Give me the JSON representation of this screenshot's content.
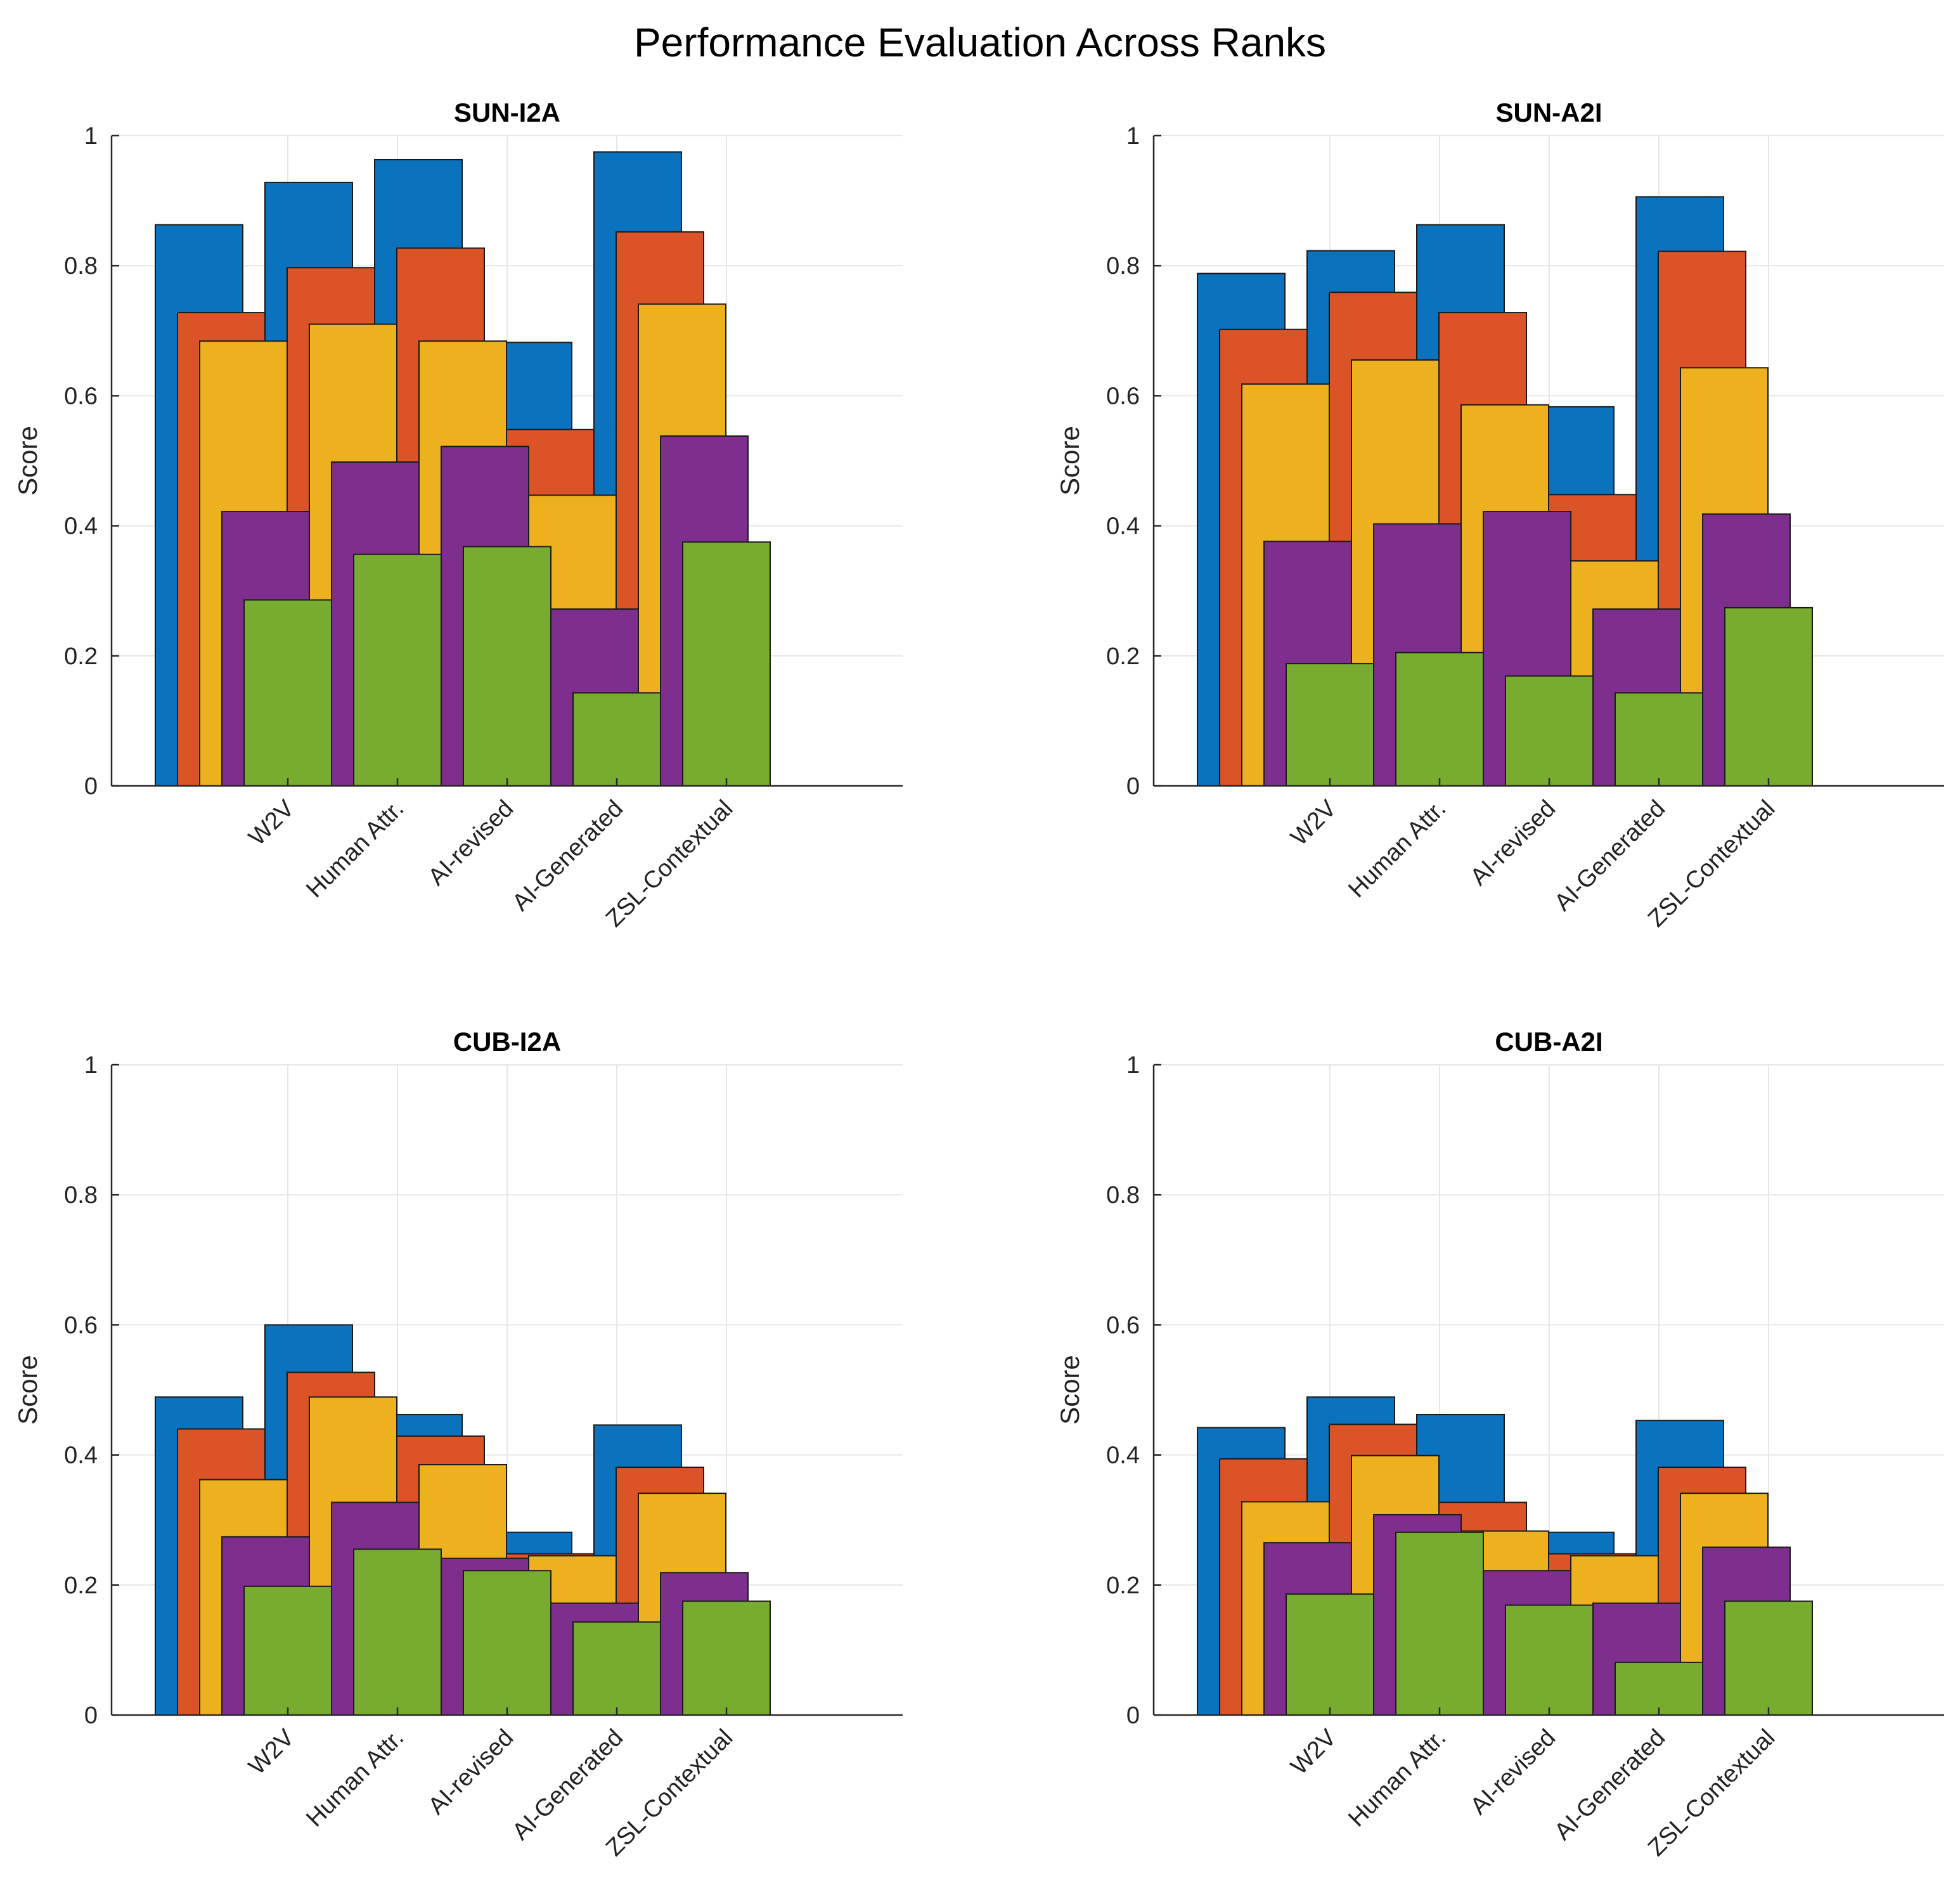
{
  "figure": {
    "title": "Performance Evaluation Across Ranks"
  },
  "chart_data": [
    {
      "type": "bar",
      "title": "SUN-I2A",
      "ylabel": "Score",
      "xlabel": "",
      "ylim": [
        0,
        1
      ],
      "yticks": [
        "0",
        "0.2",
        "0.4",
        "0.6",
        "0.8",
        "1"
      ],
      "grid": true,
      "categories": [
        "W2V",
        "Human Attr.",
        "AI-revised",
        "AI-Generated",
        "ZSL-Contextual"
      ],
      "colors": [
        "#0B72BD",
        "#DA5427",
        "#EDB120",
        "#7E2F8E",
        "#77AC30"
      ],
      "series": [
        {
          "values": [
            0.863,
            0.928,
            0.963,
            0.682,
            0.975
          ]
        },
        {
          "values": [
            0.728,
            0.797,
            0.827,
            0.548,
            0.852
          ]
        },
        {
          "values": [
            0.684,
            0.71,
            0.684,
            0.447,
            0.741
          ]
        },
        {
          "values": [
            0.422,
            0.498,
            0.522,
            0.272,
            0.538
          ]
        },
        {
          "values": [
            0.286,
            0.356,
            0.368,
            0.143,
            0.375
          ]
        }
      ]
    },
    {
      "type": "bar",
      "title": "SUN-A2I",
      "ylabel": "Score",
      "xlabel": "",
      "ylim": [
        0,
        1
      ],
      "yticks": [
        "0",
        "0.2",
        "0.4",
        "0.6",
        "0.8",
        "1"
      ],
      "grid": true,
      "categories": [
        "W2V",
        "Human Attr.",
        "AI-revised",
        "AI-Generated",
        "ZSL-Contextual"
      ],
      "colors": [
        "#0B72BD",
        "#DA5427",
        "#EDB120",
        "#7E2F8E",
        "#77AC30"
      ],
      "series": [
        {
          "values": [
            0.788,
            0.823,
            0.863,
            0.583,
            0.906
          ]
        },
        {
          "values": [
            0.702,
            0.759,
            0.728,
            0.448,
            0.822
          ]
        },
        {
          "values": [
            0.618,
            0.655,
            0.586,
            0.346,
            0.643
          ]
        },
        {
          "values": [
            0.376,
            0.403,
            0.422,
            0.272,
            0.418
          ]
        },
        {
          "values": [
            0.188,
            0.205,
            0.169,
            0.143,
            0.274
          ]
        }
      ]
    },
    {
      "type": "bar",
      "title": "CUB-I2A",
      "ylabel": "Score",
      "xlabel": "",
      "ylim": [
        0,
        1
      ],
      "yticks": [
        "0",
        "0.2",
        "0.4",
        "0.6",
        "0.8",
        "1"
      ],
      "grid": true,
      "categories": [
        "W2V",
        "Human Attr.",
        "AI-revised",
        "AI-Generated",
        "ZSL-Contextual"
      ],
      "colors": [
        "#0B72BD",
        "#DA5427",
        "#EDB120",
        "#7E2F8E",
        "#77AC30"
      ],
      "series": [
        {
          "values": [
            0.489,
            0.6,
            0.462,
            0.281,
            0.446
          ]
        },
        {
          "values": [
            0.44,
            0.527,
            0.429,
            0.248,
            0.381
          ]
        },
        {
          "values": [
            0.362,
            0.489,
            0.385,
            0.245,
            0.341
          ]
        },
        {
          "values": [
            0.274,
            0.327,
            0.241,
            0.172,
            0.219
          ]
        },
        {
          "values": [
            0.198,
            0.255,
            0.222,
            0.143,
            0.175
          ]
        }
      ]
    },
    {
      "type": "bar",
      "title": "CUB-A2I",
      "ylabel": "Score",
      "xlabel": "",
      "ylim": [
        0,
        1
      ],
      "yticks": [
        "0",
        "0.2",
        "0.4",
        "0.6",
        "0.8",
        "1"
      ],
      "grid": true,
      "categories": [
        "W2V",
        "Human Attr.",
        "AI-revised",
        "AI-Generated",
        "ZSL-Contextual"
      ],
      "colors": [
        "#0B72BD",
        "#DA5427",
        "#EDB120",
        "#7E2F8E",
        "#77AC30"
      ],
      "series": [
        {
          "values": [
            0.442,
            0.489,
            0.462,
            0.281,
            0.453
          ]
        },
        {
          "values": [
            0.394,
            0.447,
            0.327,
            0.248,
            0.381
          ]
        },
        {
          "values": [
            0.328,
            0.399,
            0.283,
            0.245,
            0.341
          ]
        },
        {
          "values": [
            0.265,
            0.308,
            0.222,
            0.172,
            0.258
          ]
        },
        {
          "values": [
            0.186,
            0.281,
            0.169,
            0.081,
            0.175
          ]
        }
      ]
    }
  ]
}
